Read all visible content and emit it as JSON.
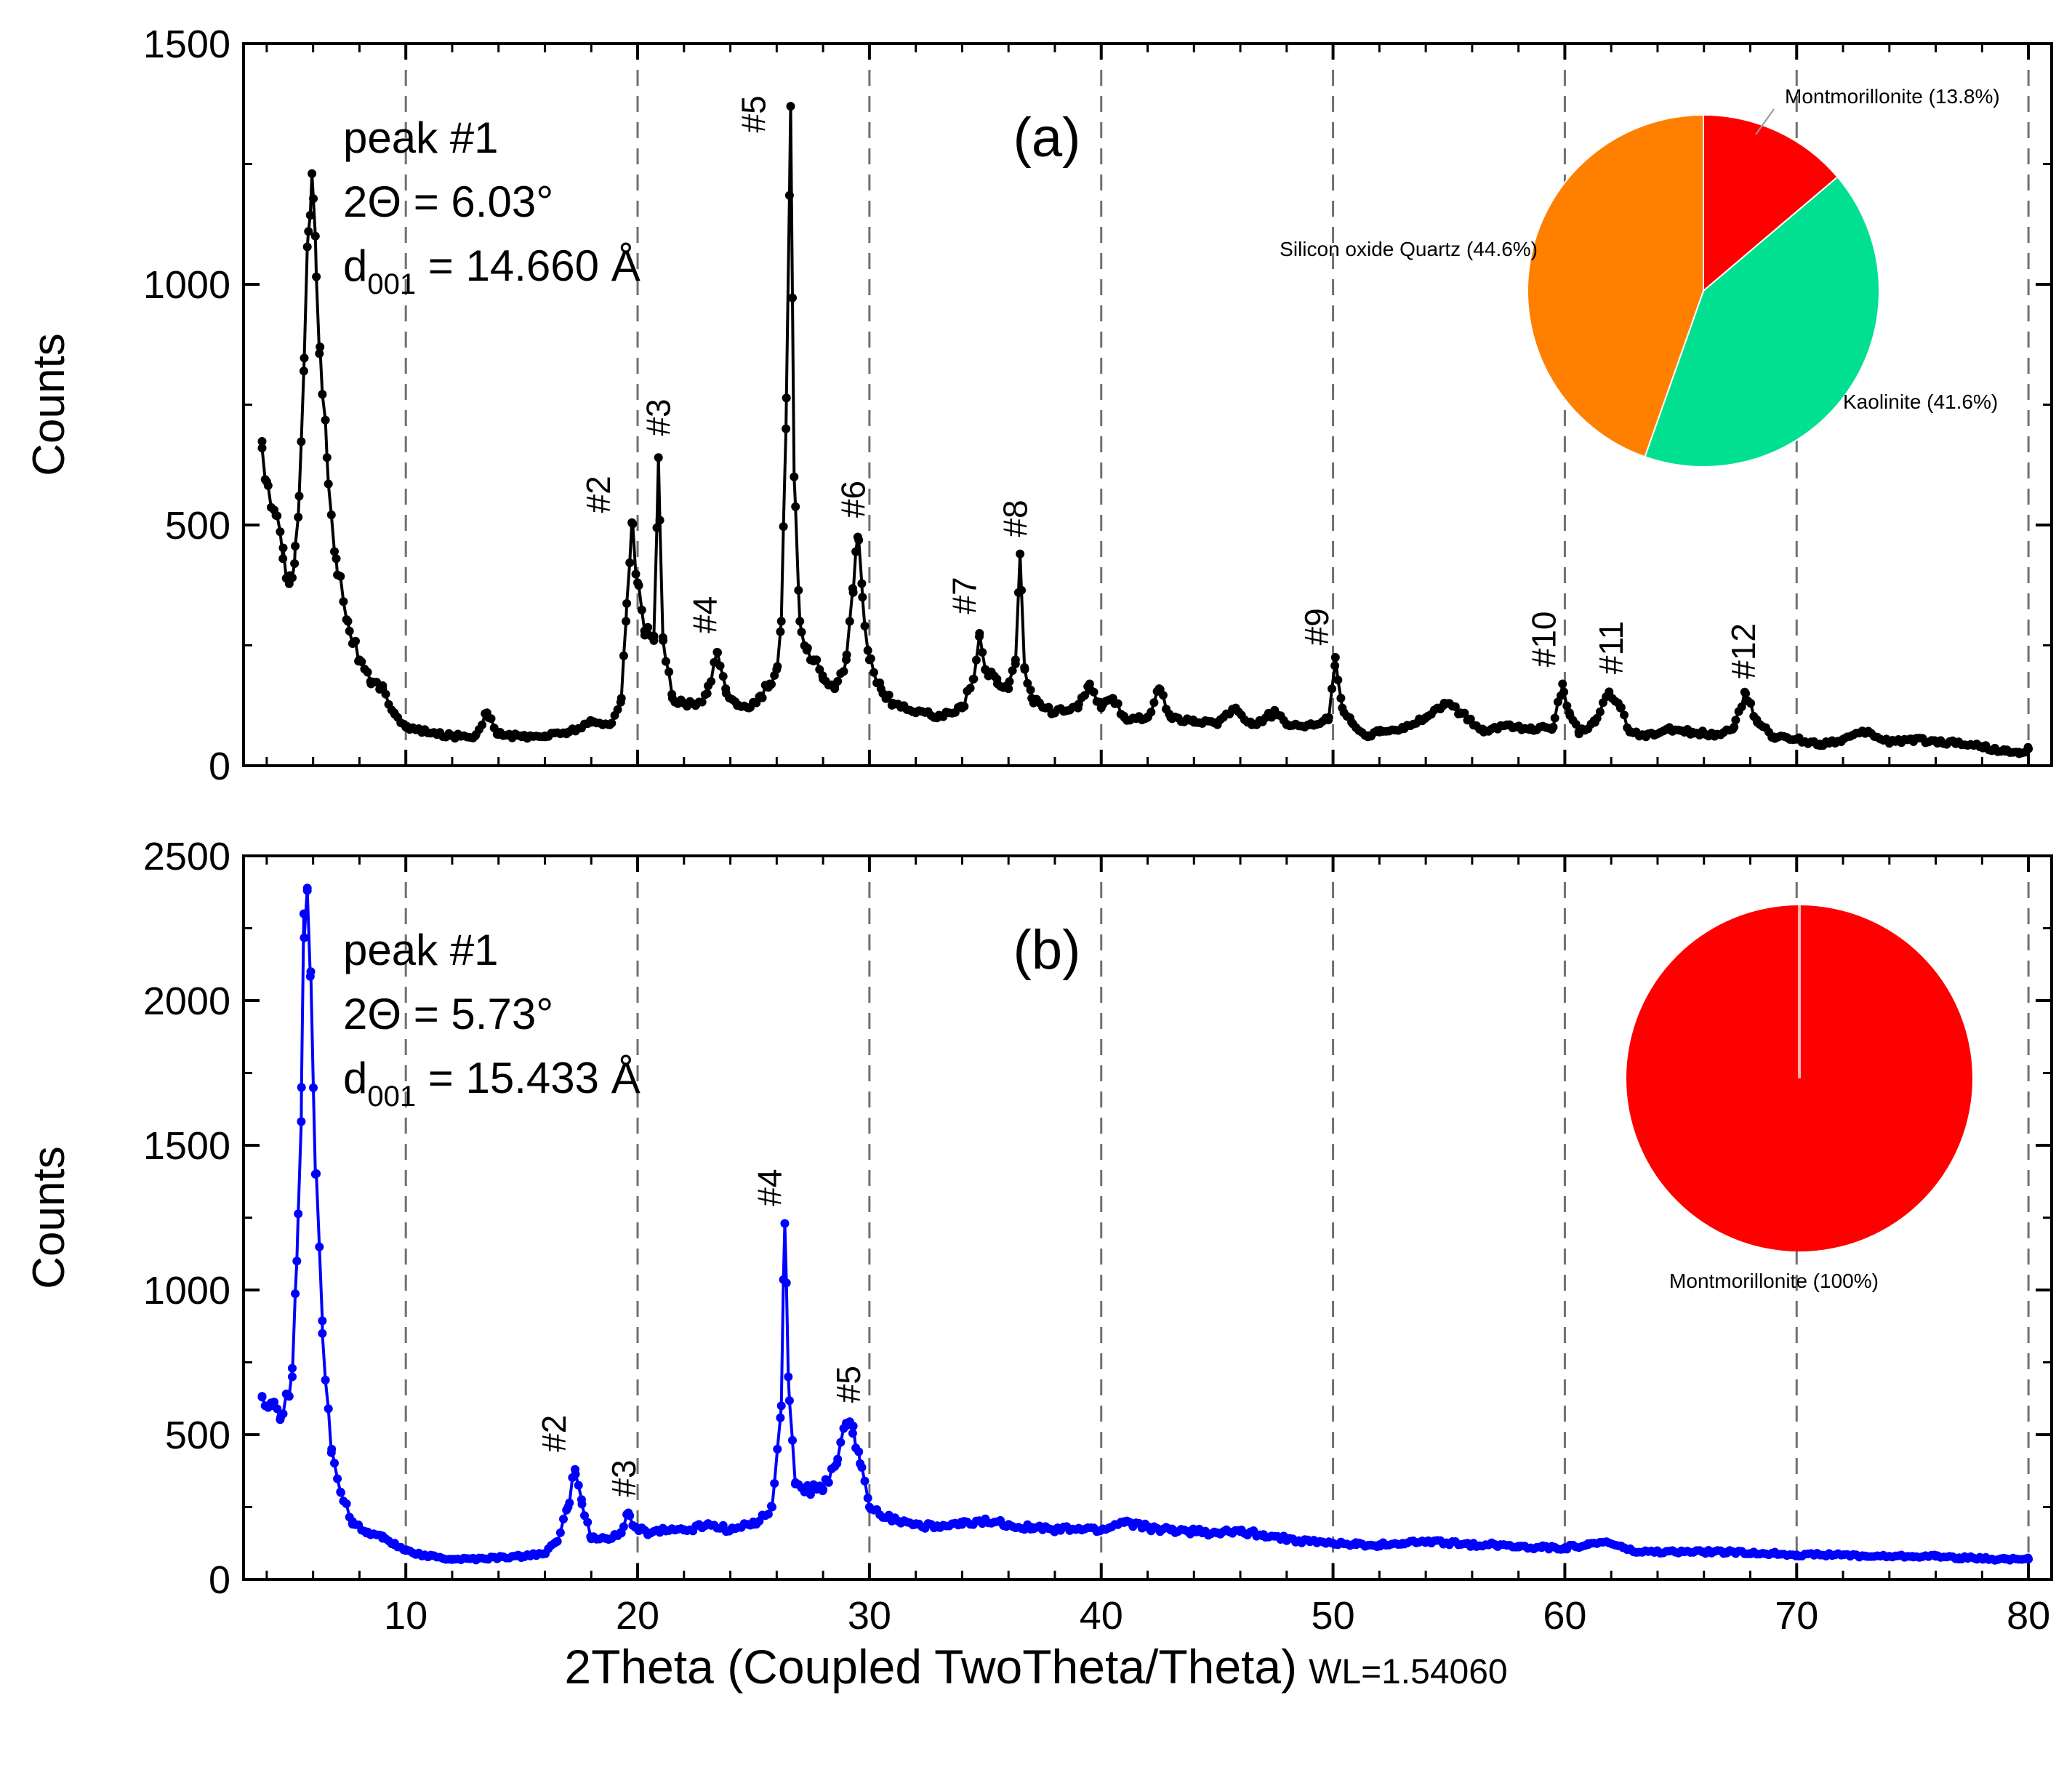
{
  "chart_data": [
    {
      "id": "a",
      "type": "line",
      "panel_label": "(a)",
      "ylabel": "Counts",
      "ylim": [
        0,
        1500
      ],
      "yticks": [
        "0",
        "500",
        "1000",
        "1500"
      ],
      "xlim": [
        3,
        81
      ],
      "xticks": [
        "10",
        "20",
        "30",
        "40",
        "50",
        "60",
        "70",
        "80"
      ],
      "grid_x": [
        10,
        20,
        30,
        40,
        50,
        60,
        70,
        80
      ],
      "color": "#000000",
      "annotation": {
        "line1": "peak #1",
        "line2": "2Θ = 6.03°",
        "d_main": "d",
        "d_sub": "001",
        "d_rest": " = 14.660 Å"
      },
      "baseline": [
        [
          3.8,
          660
        ],
        [
          4.0,
          590
        ],
        [
          4.4,
          520
        ],
        [
          4.7,
          430
        ],
        [
          5.0,
          395
        ],
        [
          5.2,
          420
        ],
        [
          5.4,
          560
        ],
        [
          5.6,
          820
        ],
        [
          5.8,
          1110
        ],
        [
          5.95,
          1230
        ],
        [
          6.1,
          1100
        ],
        [
          6.3,
          870
        ],
        [
          6.6,
          640
        ],
        [
          7.0,
          430
        ],
        [
          7.5,
          300
        ],
        [
          8.0,
          220
        ],
        [
          8.5,
          170
        ],
        [
          9.0,
          160
        ],
        [
          9.5,
          110
        ],
        [
          10.0,
          80
        ],
        [
          11,
          68
        ],
        [
          12,
          62
        ],
        [
          13,
          62
        ],
        [
          13.5,
          110
        ],
        [
          14,
          65
        ],
        [
          15,
          60
        ],
        [
          16,
          62
        ],
        [
          17,
          70
        ],
        [
          18,
          90
        ],
        [
          18.8,
          85
        ],
        [
          19.3,
          140
        ],
        [
          19.5,
          300
        ],
        [
          19.75,
          505
        ],
        [
          20.0,
          380
        ],
        [
          20.3,
          280
        ],
        [
          20.7,
          260
        ],
        [
          20.9,
          640
        ],
        [
          21.1,
          260
        ],
        [
          21.5,
          140
        ],
        [
          22.0,
          130
        ],
        [
          22.5,
          125
        ],
        [
          23.0,
          150
        ],
        [
          23.45,
          235
        ],
        [
          23.8,
          160
        ],
        [
          24.3,
          125
        ],
        [
          24.8,
          120
        ],
        [
          25.3,
          145
        ],
        [
          25.7,
          170
        ],
        [
          26.0,
          200
        ],
        [
          26.2,
          300
        ],
        [
          26.4,
          700
        ],
        [
          26.6,
          1370
        ],
        [
          26.75,
          600
        ],
        [
          27.0,
          300
        ],
        [
          27.3,
          240
        ],
        [
          27.6,
          220
        ],
        [
          28.0,
          180
        ],
        [
          28.5,
          160
        ],
        [
          29.0,
          220
        ],
        [
          29.3,
          360
        ],
        [
          29.5,
          475
        ],
        [
          29.7,
          350
        ],
        [
          30.0,
          220
        ],
        [
          30.5,
          160
        ],
        [
          31,
          130
        ],
        [
          32,
          110
        ],
        [
          33,
          105
        ],
        [
          34,
          120
        ],
        [
          34.5,
          180
        ],
        [
          34.75,
          275
        ],
        [
          35.0,
          200
        ],
        [
          35.5,
          180
        ],
        [
          36.0,
          160
        ],
        [
          36.3,
          220
        ],
        [
          36.5,
          440
        ],
        [
          36.7,
          200
        ],
        [
          37,
          140
        ],
        [
          38,
          110
        ],
        [
          39,
          120
        ],
        [
          39.5,
          170
        ],
        [
          40.0,
          120
        ],
        [
          40.5,
          140
        ],
        [
          41,
          100
        ],
        [
          42,
          100
        ],
        [
          42.5,
          160
        ],
        [
          43,
          100
        ],
        [
          44,
          90
        ],
        [
          45,
          90
        ],
        [
          45.8,
          120
        ],
        [
          46.5,
          85
        ],
        [
          47.5,
          110
        ],
        [
          48,
          85
        ],
        [
          49,
          85
        ],
        [
          49.8,
          95
        ],
        [
          50.1,
          225
        ],
        [
          50.4,
          120
        ],
        [
          50.8,
          90
        ],
        [
          51.5,
          60
        ],
        [
          52,
          70
        ],
        [
          53,
          80
        ],
        [
          54,
          100
        ],
        [
          54.8,
          130
        ],
        [
          55.5,
          110
        ],
        [
          56.5,
          70
        ],
        [
          57.5,
          85
        ],
        [
          58.5,
          75
        ],
        [
          59.5,
          80
        ],
        [
          59.9,
          170
        ],
        [
          60.2,
          110
        ],
        [
          60.6,
          70
        ],
        [
          61.3,
          90
        ],
        [
          61.9,
          150
        ],
        [
          62.4,
          120
        ],
        [
          62.8,
          70
        ],
        [
          63.5,
          60
        ],
        [
          64.5,
          75
        ],
        [
          65.5,
          70
        ],
        [
          66.5,
          65
        ],
        [
          67.3,
          80
        ],
        [
          67.8,
          150
        ],
        [
          68.3,
          90
        ],
        [
          69,
          60
        ],
        [
          70,
          55
        ],
        [
          71,
          45
        ],
        [
          72,
          55
        ],
        [
          73,
          70
        ],
        [
          74,
          50
        ],
        [
          75,
          55
        ],
        [
          76,
          50
        ],
        [
          77,
          48
        ],
        [
          78,
          40
        ],
        [
          79,
          30
        ],
        [
          79.6,
          25
        ],
        [
          80,
          35
        ]
      ],
      "peak_labels": [
        {
          "text": "#2",
          "x": 18.8,
          "y": 525
        },
        {
          "text": "#3",
          "x": 21.4,
          "y": 685
        },
        {
          "text": "#4",
          "x": 23.4,
          "y": 275
        },
        {
          "text": "#5",
          "x": 25.5,
          "y": 1315
        },
        {
          "text": "#6",
          "x": 29.8,
          "y": 515
        },
        {
          "text": "#7",
          "x": 34.6,
          "y": 315
        },
        {
          "text": "#8",
          "x": 36.8,
          "y": 475
        },
        {
          "text": "#9",
          "x": 49.8,
          "y": 250
        },
        {
          "text": "#10",
          "x": 59.6,
          "y": 205
        },
        {
          "text": "#11",
          "x": 62.5,
          "y": 190
        },
        {
          "text": "#12",
          "x": 68.2,
          "y": 180
        }
      ],
      "pie": {
        "slices": [
          {
            "label": "Montmorillonite (13.8%)",
            "value": 13.8,
            "color": "#ff0000"
          },
          {
            "label": "Kaolinite (41.6%)",
            "value": 41.6,
            "color": "#00e090"
          },
          {
            "label": "Silicon oxide Quartz (44.6%)",
            "value": 44.6,
            "color": "#ff8000"
          }
        ]
      }
    },
    {
      "id": "b",
      "type": "line",
      "panel_label": "(b)",
      "ylabel": "Counts",
      "ylim": [
        0,
        2500
      ],
      "yticks": [
        "0",
        "500",
        "1000",
        "1500",
        "2000",
        "2500"
      ],
      "xlim": [
        3,
        81
      ],
      "xticks": [
        "10",
        "20",
        "30",
        "40",
        "50",
        "60",
        "70",
        "80"
      ],
      "grid_x": [
        10,
        20,
        30,
        40,
        50,
        60,
        70,
        80
      ],
      "color": "#0000ff",
      "annotation": {
        "line1": "peak #1",
        "line2": "2Θ = 5.73°",
        "d_main": "d",
        "d_sub": "001",
        "d_rest": " = 15.433 Å"
      },
      "baseline": [
        [
          3.8,
          630
        ],
        [
          4.2,
          600
        ],
        [
          4.6,
          560
        ],
        [
          4.9,
          640
        ],
        [
          5.1,
          700
        ],
        [
          5.3,
          1100
        ],
        [
          5.5,
          1700
        ],
        [
          5.6,
          2300
        ],
        [
          5.75,
          2380
        ],
        [
          5.9,
          2100
        ],
        [
          6.1,
          1400
        ],
        [
          6.4,
          850
        ],
        [
          6.8,
          450
        ],
        [
          7.2,
          300
        ],
        [
          7.7,
          200
        ],
        [
          8.3,
          160
        ],
        [
          9.0,
          150
        ],
        [
          9.5,
          120
        ],
        [
          10,
          100
        ],
        [
          11,
          80
        ],
        [
          12,
          70
        ],
        [
          13,
          70
        ],
        [
          14,
          75
        ],
        [
          15,
          80
        ],
        [
          16,
          90
        ],
        [
          16.5,
          130
        ],
        [
          17.0,
          250
        ],
        [
          17.3,
          380
        ],
        [
          17.6,
          260
        ],
        [
          18.0,
          140
        ],
        [
          18.7,
          140
        ],
        [
          19.3,
          160
        ],
        [
          19.6,
          230
        ],
        [
          19.9,
          180
        ],
        [
          20.5,
          160
        ],
        [
          21,
          170
        ],
        [
          22,
          170
        ],
        [
          23,
          190
        ],
        [
          24,
          170
        ],
        [
          25,
          190
        ],
        [
          25.8,
          250
        ],
        [
          26.2,
          600
        ],
        [
          26.35,
          1230
        ],
        [
          26.5,
          700
        ],
        [
          26.8,
          330
        ],
        [
          27.3,
          310
        ],
        [
          28.0,
          310
        ],
        [
          28.6,
          400
        ],
        [
          29.0,
          540
        ],
        [
          29.3,
          530
        ],
        [
          29.6,
          400
        ],
        [
          30,
          250
        ],
        [
          31,
          210
        ],
        [
          32,
          190
        ],
        [
          33,
          180
        ],
        [
          34,
          190
        ],
        [
          35,
          200
        ],
        [
          36,
          190
        ],
        [
          37,
          180
        ],
        [
          38,
          170
        ],
        [
          39,
          175
        ],
        [
          40,
          170
        ],
        [
          41,
          200
        ],
        [
          42,
          180
        ],
        [
          43,
          170
        ],
        [
          44,
          165
        ],
        [
          45,
          160
        ],
        [
          46,
          165
        ],
        [
          47,
          155
        ],
        [
          48,
          140
        ],
        [
          49,
          130
        ],
        [
          50,
          125
        ],
        [
          51,
          120
        ],
        [
          52,
          120
        ],
        [
          53,
          125
        ],
        [
          54,
          130
        ],
        [
          55,
          125
        ],
        [
          56,
          120
        ],
        [
          57,
          120
        ],
        [
          58,
          115
        ],
        [
          59,
          110
        ],
        [
          60,
          110
        ],
        [
          61,
          120
        ],
        [
          61.8,
          130
        ],
        [
          62.5,
          110
        ],
        [
          63,
          95
        ],
        [
          64,
          95
        ],
        [
          65,
          95
        ],
        [
          66,
          95
        ],
        [
          67,
          95
        ],
        [
          68,
          90
        ],
        [
          69,
          90
        ],
        [
          70,
          85
        ],
        [
          71,
          85
        ],
        [
          72,
          85
        ],
        [
          73,
          80
        ],
        [
          74,
          80
        ],
        [
          75,
          80
        ],
        [
          76,
          80
        ],
        [
          77,
          75
        ],
        [
          78,
          72
        ],
        [
          79,
          70
        ],
        [
          80,
          70
        ]
      ],
      "peak_labels": [
        {
          "text": "#2",
          "x": 16.9,
          "y": 440
        },
        {
          "text": "#3",
          "x": 19.9,
          "y": 285
        },
        {
          "text": "#4",
          "x": 26.2,
          "y": 1290
        },
        {
          "text": "#5",
          "x": 29.6,
          "y": 610
        }
      ],
      "pie": {
        "slices": [
          {
            "label": "Montmorillonite (100%)",
            "value": 100,
            "color": "#ff0000"
          }
        ]
      }
    }
  ],
  "xlabel": {
    "main": "2Theta (Coupled TwoTheta/Theta)",
    "sub": "WL=1.54060"
  }
}
